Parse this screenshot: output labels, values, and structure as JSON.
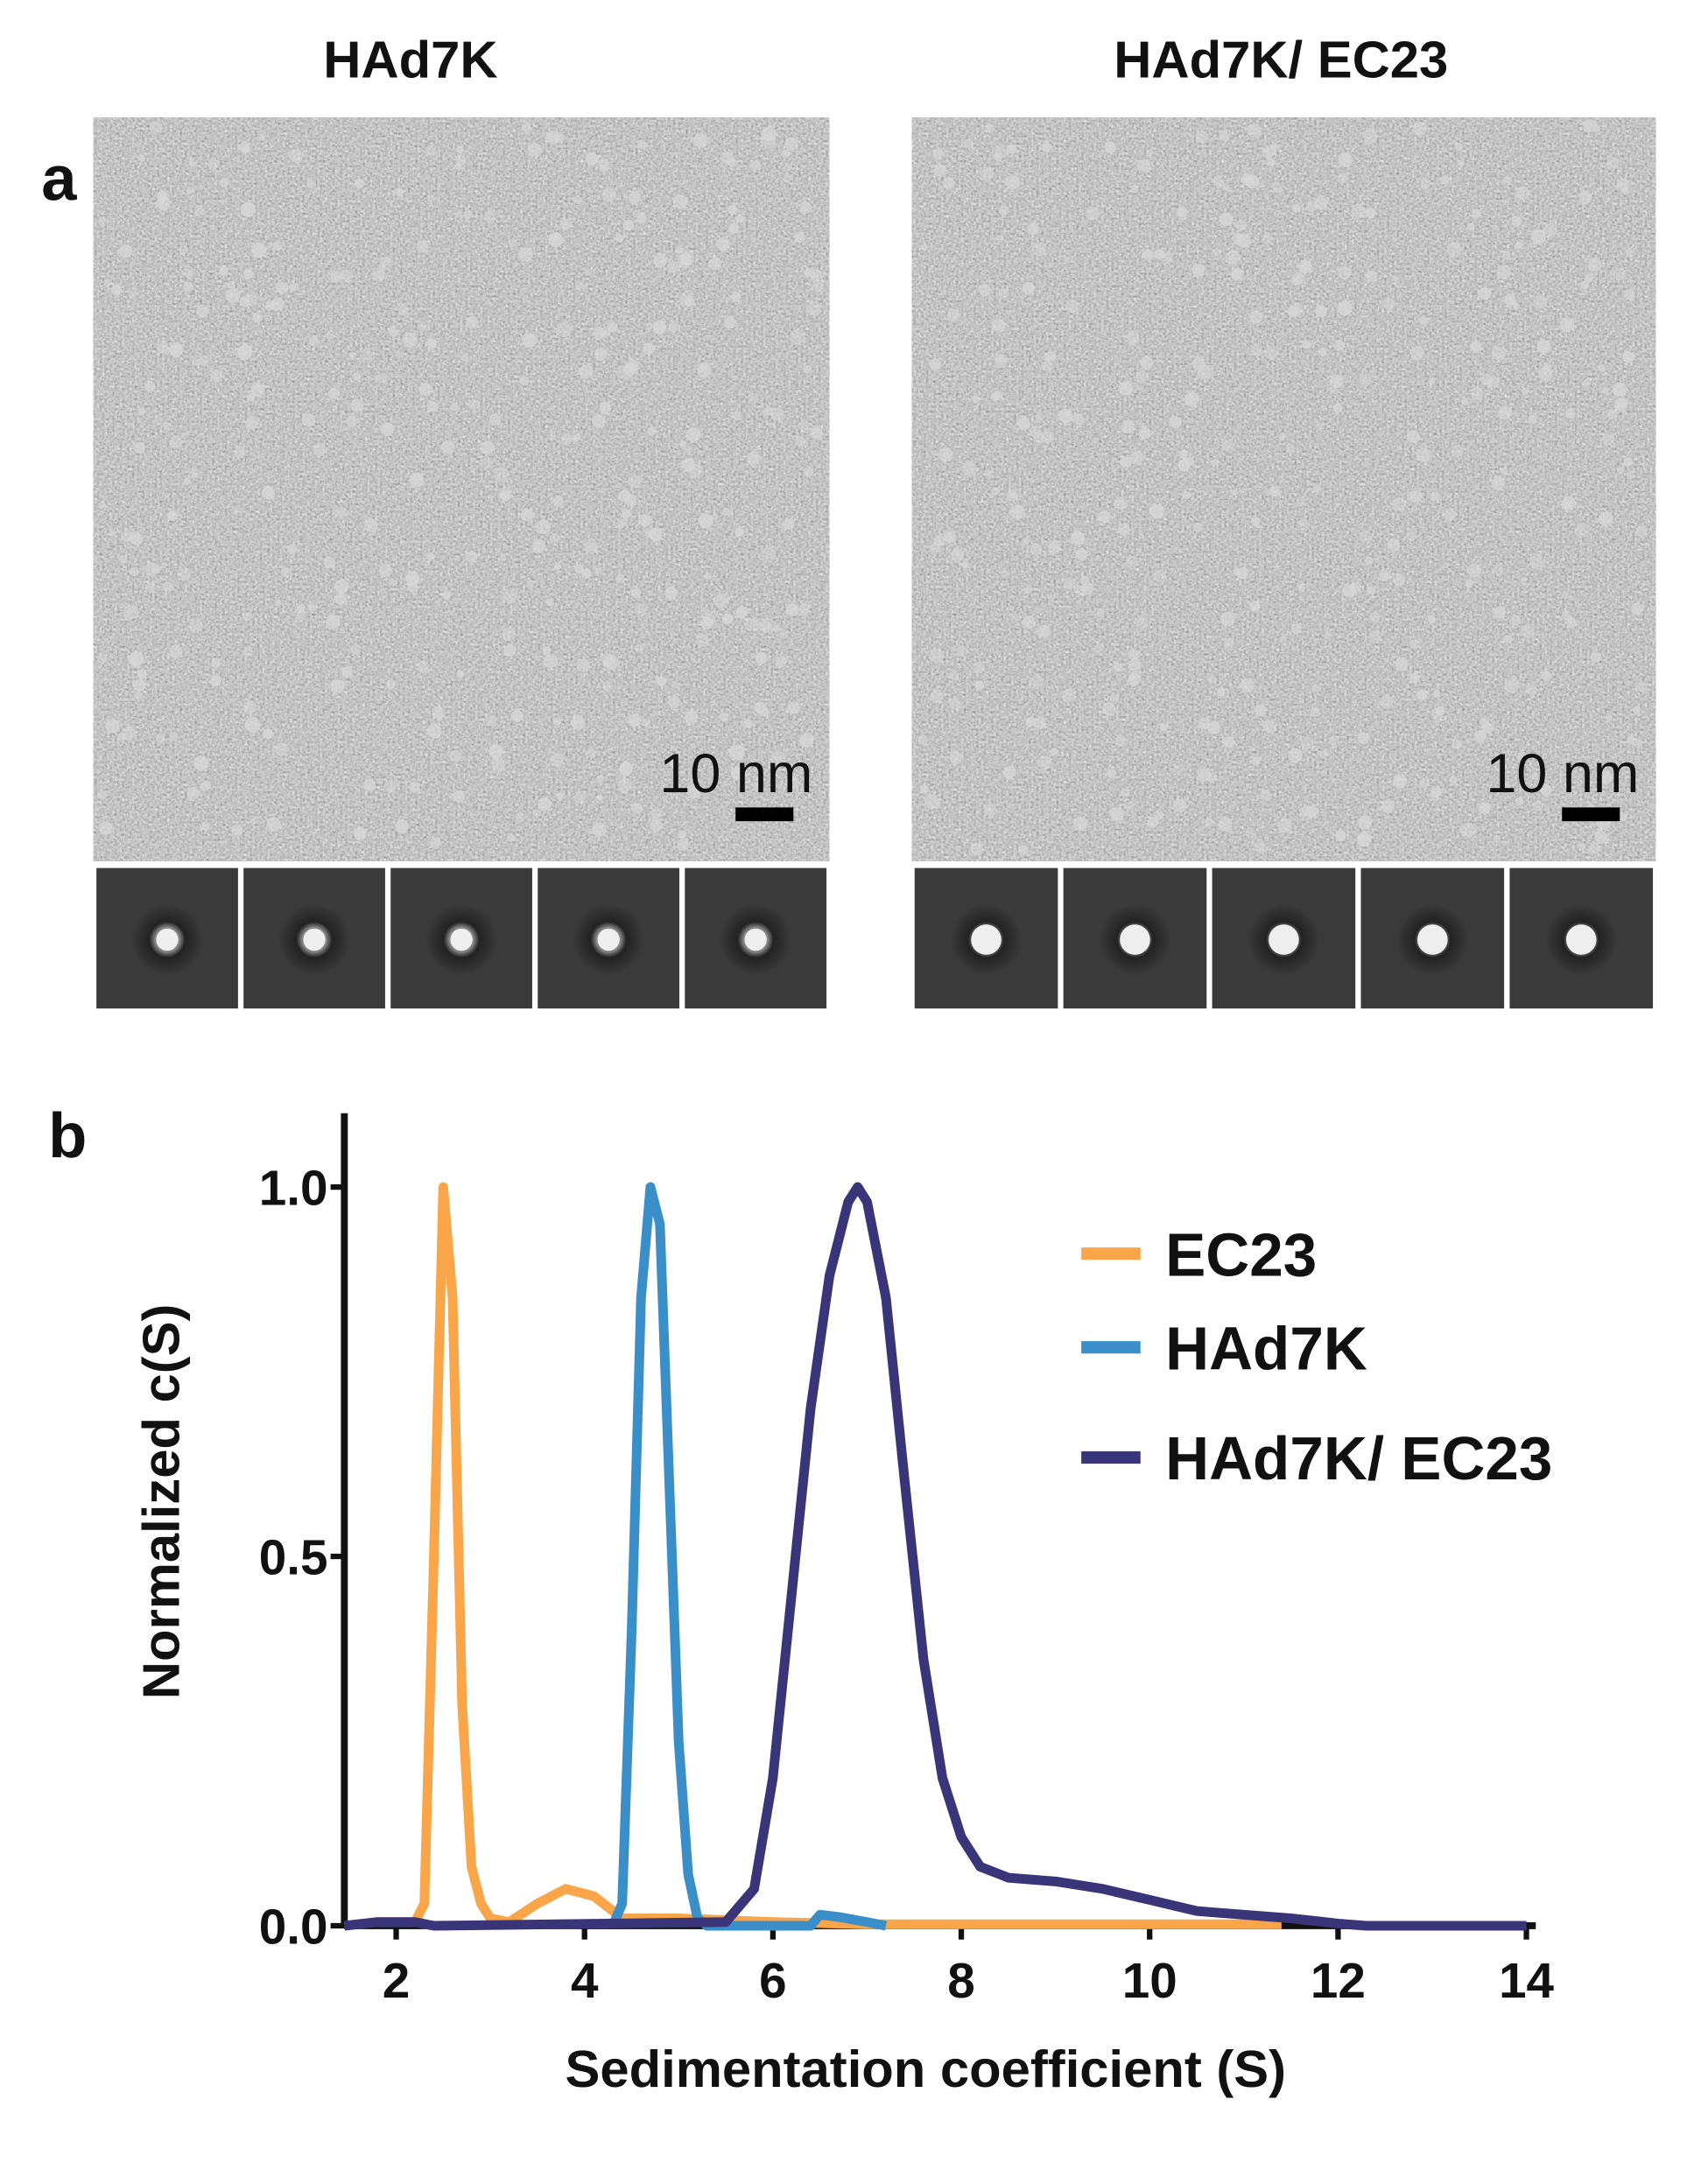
{
  "panel_a": {
    "label": "a",
    "images": [
      {
        "title": "HAd7K",
        "scale_bar": "10 nm"
      },
      {
        "title": "HAd7K/ EC23",
        "scale_bar": "10 nm"
      }
    ]
  },
  "chart_data": {
    "type": "line",
    "panel_label": "b",
    "x_label": "Sedimentation coefficient (S)",
    "y_label": "Normalized c(S)",
    "xlim": [
      1.45,
      14.1
    ],
    "ylim": [
      0,
      1.1
    ],
    "xticks": [
      2,
      4,
      6,
      8,
      10,
      12,
      14
    ],
    "yticks": [
      {
        "value": 0,
        "label": "0.0"
      },
      {
        "value": 0.5,
        "label": "0.5"
      },
      {
        "value": 1,
        "label": "1.0"
      }
    ],
    "legend": "upper right",
    "series": [
      {
        "name": "EC23",
        "color": "#f9a64a",
        "x": [
          1.8,
          2.2,
          2.3,
          2.4,
          2.5,
          2.6,
          2.7,
          2.8,
          2.9,
          3.0,
          3.2,
          3.5,
          3.8,
          4.1,
          4.4,
          5.0,
          6.0,
          7.0,
          10.0,
          11.4
        ],
        "values": [
          0.005,
          0.005,
          0.03,
          0.5,
          1.0,
          0.85,
          0.3,
          0.08,
          0.03,
          0.01,
          0.005,
          0.03,
          0.05,
          0.04,
          0.01,
          0.01,
          0.005,
          0.002,
          0.002,
          0.002
        ]
      },
      {
        "name": "HAd7K",
        "color": "#3a8fc8",
        "x": [
          4.3,
          4.4,
          4.5,
          4.6,
          4.7,
          4.8,
          4.9,
          5.0,
          5.1,
          5.2,
          5.3,
          6.4,
          6.5,
          6.7,
          7.0,
          7.2
        ],
        "values": [
          0,
          0.03,
          0.4,
          0.85,
          1.0,
          0.95,
          0.6,
          0.25,
          0.07,
          0.01,
          0,
          0,
          0.015,
          0.012,
          0.005,
          0
        ]
      },
      {
        "name": "HAd7K/ EC23",
        "color": "#3a3479",
        "x": [
          1.45,
          1.8,
          2.2,
          2.4,
          5.5,
          5.8,
          6.0,
          6.2,
          6.4,
          6.6,
          6.8,
          6.9,
          7.0,
          7.2,
          7.4,
          7.6,
          7.8,
          8.0,
          8.2,
          8.5,
          9.0,
          9.5,
          10.0,
          10.5,
          11.0,
          11.5,
          12.0,
          12.3,
          14.0
        ],
        "values": [
          0,
          0.005,
          0.005,
          0,
          0.005,
          0.05,
          0.2,
          0.45,
          0.7,
          0.88,
          0.98,
          1.0,
          0.98,
          0.85,
          0.6,
          0.36,
          0.2,
          0.12,
          0.08,
          0.065,
          0.06,
          0.05,
          0.035,
          0.02,
          0.015,
          0.01,
          0.003,
          0,
          0
        ]
      }
    ]
  }
}
